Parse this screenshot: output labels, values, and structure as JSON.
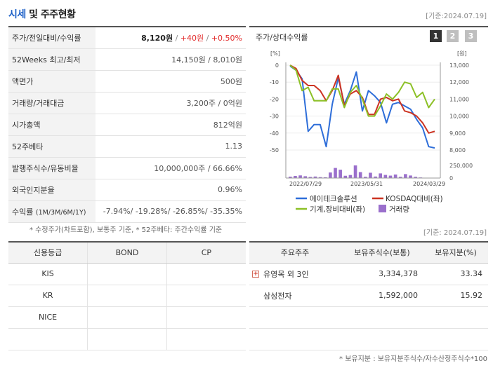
{
  "header": {
    "title_accent": "시세",
    "title_rest": " 및 주주현황",
    "date": "[기준:2024.07.19]"
  },
  "price_table": {
    "price": {
      "label": "주가/전일대비/수익률",
      "price": "8,120원",
      "sep1": " / ",
      "change": "+40원",
      "sep2": " / ",
      "rate": "+0.50%"
    },
    "week52": {
      "label": "52Weeks 최고/최저",
      "value": "14,150원 / 8,010원"
    },
    "par": {
      "label": "액면가",
      "value": "500원"
    },
    "volume": {
      "label": "거래량/거래대금",
      "value": "3,200주 / 0억원"
    },
    "market_cap": {
      "label": "시가총액",
      "value": "812억원"
    },
    "beta": {
      "label": "52주베타",
      "value": "1.13"
    },
    "shares": {
      "label": "발행주식수/유동비율",
      "value": "10,000,000주 / 66.66%"
    },
    "foreign": {
      "label": "외국인지분율",
      "value": "0.96%"
    },
    "returns": {
      "label": "수익률",
      "label_small": "(1M/3M/6M/1Y)",
      "r1": "-7.94%",
      "r2": "-19.28%",
      "r3": "-26.85%",
      "r4": "-35.35%",
      "sep": "/ "
    },
    "note": "* 수정주가(차트포함), 보통주 기준, * 52주베타: 주간수익률 기준"
  },
  "chart_panel": {
    "title": "주가/상대수익률",
    "tabs": [
      "1",
      "2",
      "3"
    ]
  },
  "chart_data": {
    "type": "line",
    "left_unit": "[%]",
    "right_unit": "[원]",
    "left_ticks": [
      "0",
      "-10",
      "-20",
      "-30",
      "-40",
      "-50"
    ],
    "right_ticks": [
      "13,000",
      "12,000",
      "11,000",
      "10,000",
      "9,000",
      "8,000"
    ],
    "volume_ticks": [
      "250,000",
      "0"
    ],
    "x_labels": [
      "2022/07/29",
      "2023/05/31",
      "2024/03/29"
    ],
    "left_range": [
      -50,
      0
    ],
    "right_range": [
      8000,
      13000
    ],
    "series": [
      {
        "name": "에이테크솔루션",
        "axis": "right",
        "color": "#2e6ed9",
        "values": [
          12950,
          12700,
          12200,
          9100,
          9500,
          9500,
          8200,
          10700,
          12250,
          10700,
          11500,
          12600,
          10300,
          11500,
          11200,
          10800,
          9600,
          10700,
          10800,
          10600,
          10400,
          9800,
          9300,
          8200,
          8120
        ]
      },
      {
        "name": "KOSDAQ대비(좌)",
        "axis": "left",
        "color": "#cc3322",
        "values": [
          0,
          -2,
          -9,
          -12,
          -12,
          -15,
          -21,
          -15,
          -6,
          -24,
          -17,
          -15,
          -19,
          -29,
          -29,
          -20,
          -19,
          -21,
          -20,
          -27,
          -28,
          -30,
          -34,
          -40,
          -39
        ]
      },
      {
        "name": "기계,장비대비(좌)",
        "axis": "left",
        "color": "#8cc026",
        "values": [
          0,
          -3,
          -15,
          -13,
          -21,
          -21,
          -21,
          -14,
          -14,
          -25,
          -16,
          -12,
          -20,
          -30,
          -30,
          -24,
          -17,
          -20,
          -16,
          -10,
          -11,
          -19,
          -16,
          -25,
          -20
        ]
      }
    ],
    "volume": {
      "name": "거래량",
      "color": "#9a6fcc",
      "values": [
        28000,
        42000,
        52000,
        36000,
        22000,
        30000,
        18000,
        15000,
        110000,
        200000,
        165000,
        45000,
        60000,
        250000,
        118000,
        25000,
        105000,
        30000,
        92000,
        62000,
        48000,
        70000,
        25000,
        78000,
        50000,
        25000,
        12000,
        5000,
        5000,
        3000
      ]
    }
  },
  "chart_legend": {
    "s1": "에이테크솔루션",
    "s2": "KOSDAQ대비(좌)",
    "s3": "기계,장비대비(좌)",
    "s4": "거래량"
  },
  "bottom": {
    "date": "[기준: 2024.07.19]",
    "credit": {
      "headers": [
        "신용등급",
        "BOND",
        "CP"
      ],
      "rows": [
        {
          "agency": "KIS",
          "bond": "",
          "cp": ""
        },
        {
          "agency": "KR",
          "bond": "",
          "cp": ""
        },
        {
          "agency": "NICE",
          "bond": "",
          "cp": ""
        },
        {
          "agency": "",
          "bond": "",
          "cp": ""
        }
      ]
    },
    "holders": {
      "headers": [
        "주요주주",
        "보유주식수(보통)",
        "보유지분(%)"
      ],
      "rows": [
        {
          "name": "유영목 외 3인",
          "shares": "3,334,378",
          "ratio": "33.34"
        },
        {
          "name": "삼성전자",
          "shares": "1,592,000",
          "ratio": "15.92"
        }
      ],
      "note": "* 보유지분 : 보유지분주식수/자수산정주식수*100"
    }
  }
}
